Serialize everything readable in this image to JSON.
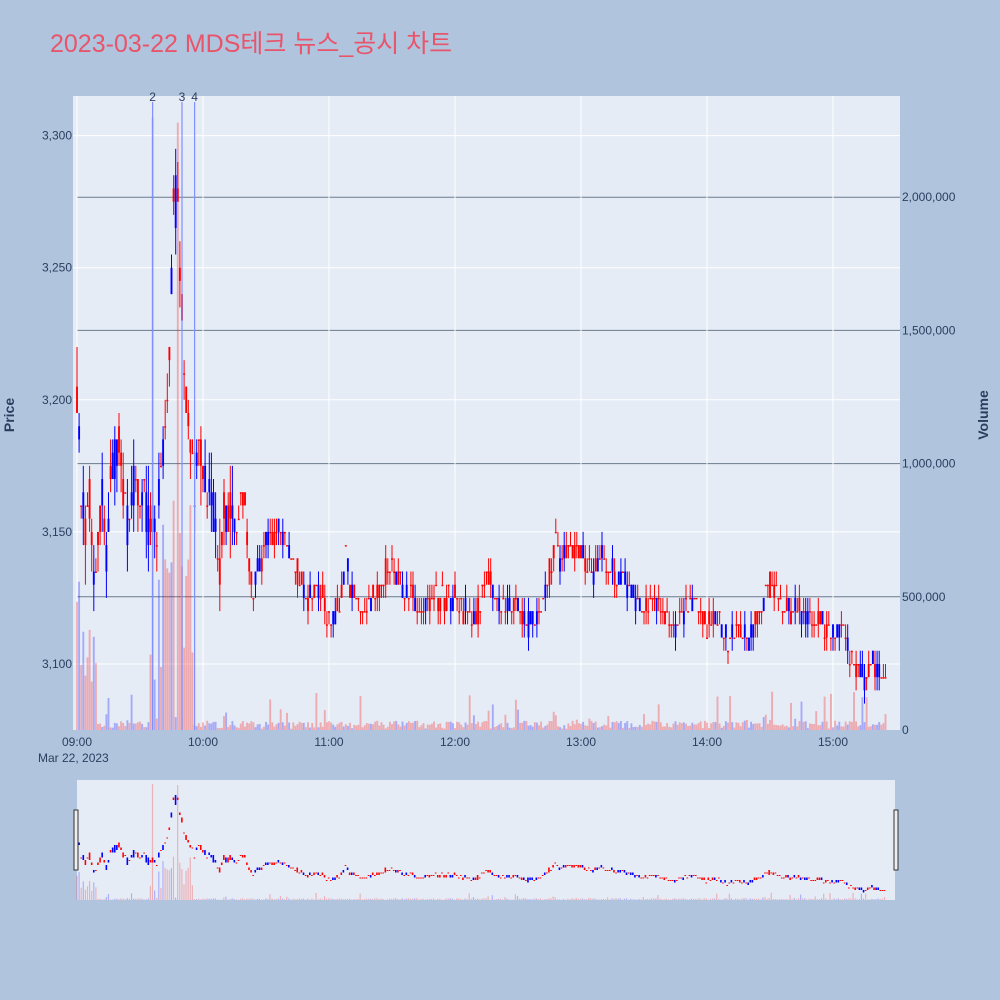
{
  "title": "2023-03-22 MDS테크 뉴스_공시 차트",
  "colors": {
    "up": "#ff0000",
    "down": "#0000ff",
    "plot_bg": "#e5ecf6",
    "paper_bg": "#b0c4de",
    "title": "#e8556b"
  },
  "chart_data": {
    "type": "candlestick",
    "ylabel": "Price",
    "y2label": "Volume",
    "x_date_label": "Mar 22, 2023",
    "x_range": [
      "09:00",
      "15:30"
    ],
    "x_ticks": [
      "09:00",
      "10:00",
      "11:00",
      "12:00",
      "13:00",
      "14:00",
      "15:00"
    ],
    "ylim": [
      3075,
      3315
    ],
    "y_ticks": [
      3100,
      3150,
      3200,
      3250,
      3300
    ],
    "y_tick_labels": [
      "3,100",
      "3,150",
      "3,200",
      "3,250",
      "3,300"
    ],
    "y2lim": [
      0,
      2380000
    ],
    "y2_ticks": [
      0,
      500000,
      1000000,
      1500000,
      2000000
    ],
    "y2_tick_labels": [
      "0",
      "500,000",
      "1,000,000",
      "1,500,000",
      "2,000,000"
    ],
    "news_markers": [
      {
        "label": "2",
        "time": "09:36"
      },
      {
        "label": "3",
        "time": "09:50"
      },
      {
        "label": "4",
        "time": "09:56"
      }
    ],
    "price_path": [
      [
        "09:00",
        3200
      ],
      [
        "09:02",
        3165
      ],
      [
        "09:04",
        3150
      ],
      [
        "09:06",
        3160
      ],
      [
        "09:08",
        3135
      ],
      [
        "09:10",
        3150
      ],
      [
        "09:12",
        3160
      ],
      [
        "09:14",
        3140
      ],
      [
        "09:16",
        3165
      ],
      [
        "09:18",
        3180
      ],
      [
        "09:20",
        3185
      ],
      [
        "09:22",
        3165
      ],
      [
        "09:24",
        3155
      ],
      [
        "09:26",
        3165
      ],
      [
        "09:28",
        3170
      ],
      [
        "09:30",
        3160
      ],
      [
        "09:32",
        3165
      ],
      [
        "09:34",
        3155
      ],
      [
        "09:36",
        3160
      ],
      [
        "09:38",
        3150
      ],
      [
        "09:40",
        3175
      ],
      [
        "09:42",
        3190
      ],
      [
        "09:44",
        3225
      ],
      [
        "09:46",
        3270
      ],
      [
        "09:48",
        3280
      ],
      [
        "09:50",
        3230
      ],
      [
        "09:52",
        3200
      ],
      [
        "09:54",
        3185
      ],
      [
        "09:56",
        3165
      ],
      [
        "09:58",
        3190
      ],
      [
        "10:00",
        3175
      ],
      [
        "10:02",
        3165
      ],
      [
        "10:04",
        3160
      ],
      [
        "10:06",
        3150
      ],
      [
        "10:08",
        3140
      ],
      [
        "10:10",
        3160
      ],
      [
        "10:12",
        3155
      ],
      [
        "10:14",
        3160
      ],
      [
        "10:16",
        3150
      ],
      [
        "10:18",
        3165
      ],
      [
        "10:20",
        3160
      ],
      [
        "10:22",
        3140
      ],
      [
        "10:24",
        3125
      ],
      [
        "10:26",
        3135
      ],
      [
        "10:28",
        3140
      ],
      [
        "10:30",
        3145
      ],
      [
        "10:35",
        3150
      ],
      [
        "10:40",
        3145
      ],
      [
        "10:45",
        3135
      ],
      [
        "10:50",
        3125
      ],
      [
        "10:55",
        3130
      ],
      [
        "11:00",
        3115
      ],
      [
        "11:05",
        3120
      ],
      [
        "11:08",
        3140
      ],
      [
        "11:10",
        3130
      ],
      [
        "11:15",
        3120
      ],
      [
        "11:20",
        3125
      ],
      [
        "11:25",
        3130
      ],
      [
        "11:30",
        3140
      ],
      [
        "11:35",
        3130
      ],
      [
        "11:40",
        3125
      ],
      [
        "11:45",
        3120
      ],
      [
        "11:50",
        3125
      ],
      [
        "12:00",
        3125
      ],
      [
        "12:05",
        3120
      ],
      [
        "12:10",
        3115
      ],
      [
        "12:15",
        3135
      ],
      [
        "12:20",
        3125
      ],
      [
        "12:25",
        3120
      ],
      [
        "12:30",
        3125
      ],
      [
        "12:35",
        3115
      ],
      [
        "12:40",
        3120
      ],
      [
        "12:45",
        3135
      ],
      [
        "12:48",
        3150
      ],
      [
        "12:50",
        3140
      ],
      [
        "12:55",
        3145
      ],
      [
        "13:00",
        3140
      ],
      [
        "13:05",
        3135
      ],
      [
        "13:10",
        3140
      ],
      [
        "13:15",
        3135
      ],
      [
        "13:20",
        3130
      ],
      [
        "13:25",
        3125
      ],
      [
        "13:30",
        3120
      ],
      [
        "13:35",
        3125
      ],
      [
        "13:40",
        3120
      ],
      [
        "13:45",
        3115
      ],
      [
        "13:50",
        3120
      ],
      [
        "13:55",
        3125
      ],
      [
        "14:00",
        3115
      ],
      [
        "14:05",
        3115
      ],
      [
        "14:10",
        3110
      ],
      [
        "14:15",
        3115
      ],
      [
        "14:20",
        3110
      ],
      [
        "14:25",
        3120
      ],
      [
        "14:30",
        3130
      ],
      [
        "14:35",
        3125
      ],
      [
        "14:40",
        3120
      ],
      [
        "14:45",
        3120
      ],
      [
        "14:50",
        3115
      ],
      [
        "14:55",
        3115
      ],
      [
        "15:00",
        3110
      ],
      [
        "15:05",
        3115
      ],
      [
        "15:08",
        3105
      ],
      [
        "15:10",
        3100
      ],
      [
        "15:15",
        3095
      ],
      [
        "15:20",
        3100
      ],
      [
        "15:25",
        3095
      ]
    ]
  }
}
